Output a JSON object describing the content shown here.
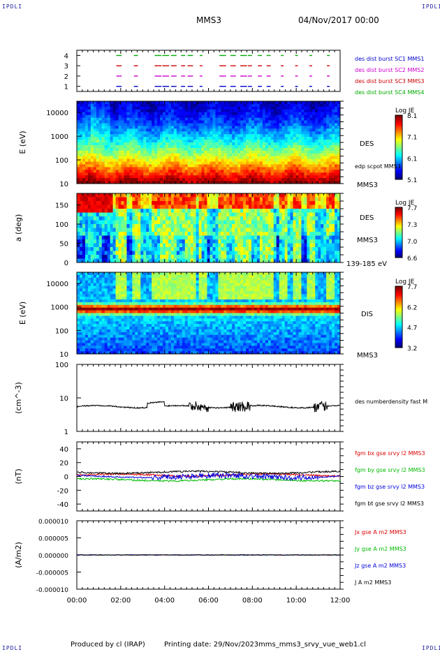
{
  "corner_text": "IPDLI",
  "header": {
    "spacecraft": "MMS3",
    "date": "04/Nov/2017 00:00"
  },
  "footer": {
    "produced_by": "Produced by cl (IRAP)",
    "printing_date": "Printing date: 29/Nov/2023",
    "filename": "mms_mms3_srvy_vue_web1.cl"
  },
  "colors": {
    "mms1": "#0000cc",
    "mms2": "#cc00cc",
    "mms3": "#cc0000",
    "mms4": "#00aa00",
    "bx": "#dd0000",
    "by": "#00bb00",
    "bz": "#0000dd",
    "bt": "#000000"
  },
  "chart_data": [
    {
      "id": "burst",
      "type": "scatter",
      "x_range": [
        0,
        12
      ],
      "ylim": [
        0.5,
        4.5
      ],
      "y_ticks": [
        "1",
        "2",
        "3",
        "4"
      ],
      "right_labels": [
        {
          "text": "des dist burst SC1 MMS1",
          "color": "mms1"
        },
        {
          "text": "des dist burst SC2 MMS2",
          "color": "mms2"
        },
        {
          "text": "des dist burst SC3 MMS3",
          "color": "mms3"
        },
        {
          "text": "des dist burst SC4 MMS4",
          "color": "mms4"
        }
      ],
      "intervals": [
        [
          1.8,
          2.0
        ],
        [
          2.6,
          2.75
        ],
        [
          3.55,
          3.8
        ],
        [
          3.9,
          4.15
        ],
        [
          4.3,
          4.5
        ],
        [
          4.75,
          4.9
        ],
        [
          5.05,
          5.25
        ],
        [
          5.6,
          5.7
        ],
        [
          6.5,
          6.75
        ],
        [
          7.0,
          7.2
        ],
        [
          7.45,
          7.7
        ],
        [
          7.8,
          7.95
        ],
        [
          8.25,
          8.4
        ],
        [
          8.65,
          8.8
        ],
        [
          9.3,
          9.4
        ],
        [
          9.95,
          10.05
        ],
        [
          10.6,
          10.7
        ],
        [
          11.4,
          11.5
        ]
      ]
    },
    {
      "id": "des_energy",
      "type": "heatmap",
      "ylabel": "E (eV)",
      "y_scale": "log",
      "ylim": [
        10,
        30000
      ],
      "y_ticks": [
        "10",
        "100",
        "1000",
        "10000"
      ],
      "colorbar": {
        "title": "Log JE",
        "range": [
          5.1,
          8.1
        ],
        "ticks": [
          "8.1",
          "7.1",
          "6.1",
          "5.1"
        ]
      },
      "right_labels": [
        "DES",
        "edp scpot MMS3",
        "MMS3"
      ]
    },
    {
      "id": "des_pitch",
      "type": "heatmap",
      "ylabel": "a (deg)",
      "ylim": [
        0,
        180
      ],
      "y_ticks": [
        "0",
        "50",
        "100",
        "150"
      ],
      "colorbar": {
        "title": "Log JE",
        "range": [
          6.6,
          7.7
        ],
        "ticks": [
          "7.7",
          "7.3",
          "7.0",
          "6.6"
        ]
      },
      "right_labels": [
        "DES",
        "MMS3",
        "139-185 eV"
      ]
    },
    {
      "id": "dis_energy",
      "type": "heatmap",
      "ylabel": "E (eV)",
      "y_scale": "log",
      "ylim": [
        10,
        30000
      ],
      "y_ticks": [
        "10",
        "100",
        "1000",
        "10000"
      ],
      "colorbar": {
        "title": "Log JE",
        "range": [
          3.2,
          7.7
        ],
        "ticks": [
          "7.7",
          "6.2",
          "4.7",
          "3.2"
        ]
      },
      "right_labels": [
        "DIS",
        "MMS3"
      ]
    },
    {
      "id": "density",
      "type": "line",
      "ylabel": "(cm^-3)",
      "y_scale": "log",
      "ylim": [
        1,
        100
      ],
      "y_ticks": [
        "1",
        "10",
        "100"
      ],
      "right_labels": [
        "des numberdensity fast M"
      ],
      "series": [
        {
          "name": "des numberdensity fast M",
          "color": "bt",
          "base": 5.5
        }
      ]
    },
    {
      "id": "bfield",
      "type": "line",
      "ylabel": "(nT)",
      "ylim": [
        -50,
        50
      ],
      "y_ticks": [
        "-40",
        "-20",
        "0",
        "20",
        "40"
      ],
      "series": [
        {
          "name": "fgm bx gse srvy l2 MMS3",
          "color": "bx",
          "base": 2
        },
        {
          "name": "fgm by gse srvy l2 MMS3",
          "color": "by",
          "base": -5
        },
        {
          "name": "fgm bz gse srvy l2 MMS3",
          "color": "bz",
          "base": 0
        },
        {
          "name": "fgm bt gse srvy l2 MMS3",
          "color": "bt",
          "base": 6
        }
      ]
    },
    {
      "id": "current",
      "type": "line",
      "ylabel": "(A/m2)",
      "ylim": [
        -1e-05,
        1e-05
      ],
      "y_ticks": [
        "-0.000010",
        "-0.000005",
        "0.000000",
        "0.000005",
        "0.000010"
      ],
      "series": [
        {
          "name": "Jx gse A m2 MMS3",
          "color": "bx"
        },
        {
          "name": "Jy gse A m2 MMS3",
          "color": "by"
        },
        {
          "name": "Jz gse A m2 MMS3",
          "color": "bz"
        },
        {
          "name": "J A m2 MMS3",
          "color": "bt"
        }
      ]
    }
  ],
  "time_axis": [
    "00:00",
    "02:00",
    "04:00",
    "06:00",
    "08:00",
    "10:00",
    "12:00"
  ]
}
